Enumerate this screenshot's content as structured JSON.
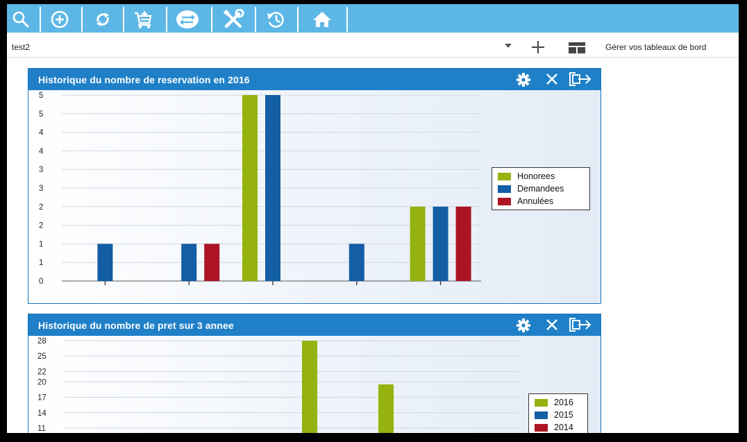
{
  "toolbar": {
    "accent": "#5db7e6",
    "buttons": [
      {
        "name": "search-icon"
      },
      {
        "name": "add-circle-icon"
      },
      {
        "name": "refresh-icon"
      },
      {
        "name": "cart-add-icon"
      },
      {
        "name": "exchange-icon"
      },
      {
        "name": "tools-icon"
      },
      {
        "name": "history-icon"
      },
      {
        "name": "home-icon"
      }
    ]
  },
  "dashboard": {
    "selected": "test2",
    "manage_label": "Gérer vos tableaux de bord"
  },
  "colors": {
    "panel_header": "#1f80c8",
    "honorees": "#95b20f",
    "demandees": "#135ea5",
    "annulees": "#ad1524"
  },
  "panels": [
    {
      "title": "Historique du nombre de reservation en 2016",
      "icons": [
        "gear-icon",
        "close-icon",
        "popout-icon"
      ]
    },
    {
      "title": "Historique du nombre de pret sur 3 annee",
      "icons": [
        "gear-icon",
        "close-icon",
        "popout-icon"
      ]
    }
  ],
  "chart_data": [
    {
      "type": "bar",
      "title": "Historique du nombre de reservation en 2016",
      "categories": [
        "",
        "",
        "",
        "",
        ""
      ],
      "ytick_labels": [
        "0",
        "1",
        "1",
        "2",
        "2",
        "3",
        "3",
        "4",
        "4",
        "5",
        "5"
      ],
      "ytick_values": [
        0,
        0.5,
        1,
        1.5,
        2,
        2.5,
        3,
        3.5,
        4,
        4.5,
        5
      ],
      "ylim": [
        0,
        5
      ],
      "grid": true,
      "legend": "right",
      "series": [
        {
          "name": "Honorees",
          "color": "#95b20f",
          "values": [
            0,
            0,
            5,
            0,
            2
          ]
        },
        {
          "name": "Demandees",
          "color": "#135ea5",
          "values": [
            1,
            1,
            5,
            1,
            2
          ]
        },
        {
          "name": "Annulées",
          "color": "#ad1524",
          "values": [
            0,
            1,
            0,
            0,
            2
          ]
        }
      ]
    },
    {
      "type": "bar",
      "title": "Historique du nombre de pret sur 3 annee",
      "ytick_labels": [
        "28",
        "25",
        "22",
        "20",
        "17",
        "14",
        "11"
      ],
      "ytick_values": [
        28,
        25,
        22,
        20,
        17,
        14,
        11
      ],
      "ylim": [
        11,
        28
      ],
      "grid": true,
      "legend": "right",
      "series": [
        {
          "name": "2016",
          "color": "#95b20f",
          "values": [
            28,
            19.5
          ]
        },
        {
          "name": "2015",
          "color": "#135ea5",
          "values": []
        },
        {
          "name": "2014",
          "color": "#ad1524",
          "values": []
        }
      ]
    }
  ]
}
